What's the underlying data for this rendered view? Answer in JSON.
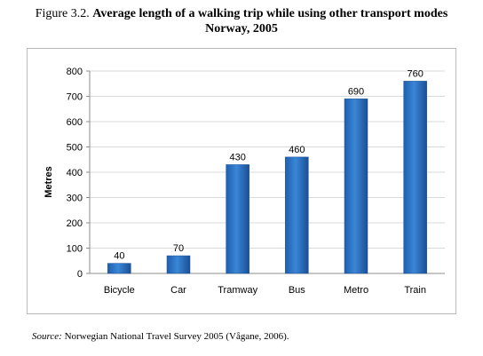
{
  "figure": {
    "number": "Figure 3.2.",
    "title_line1": "Average length of a walking trip while using other transport modes",
    "title_line2": "Norway, 2005"
  },
  "source": {
    "label": "Source:",
    "text": "Norwegian National Travel Survey 2005 (Vågane, 2006)."
  },
  "chart_data": {
    "type": "bar",
    "title": "",
    "xlabel": "",
    "ylabel": "Metres",
    "categories": [
      "Bicycle",
      "Car",
      "Tramway",
      "Bus",
      "Metro",
      "Train"
    ],
    "values": [
      40,
      70,
      430,
      460,
      690,
      760
    ],
    "data_labels": [
      "40",
      "70",
      "430",
      "460",
      "690",
      "760"
    ],
    "ylim": [
      0,
      800
    ],
    "yticks": [
      0,
      100,
      200,
      300,
      400,
      500,
      600,
      700,
      800
    ],
    "grid": true,
    "legend": "none",
    "bar_color": "#2a6fc0",
    "bar_color_dark": "#1a4f96",
    "grid_color": "#d9d9d9"
  }
}
